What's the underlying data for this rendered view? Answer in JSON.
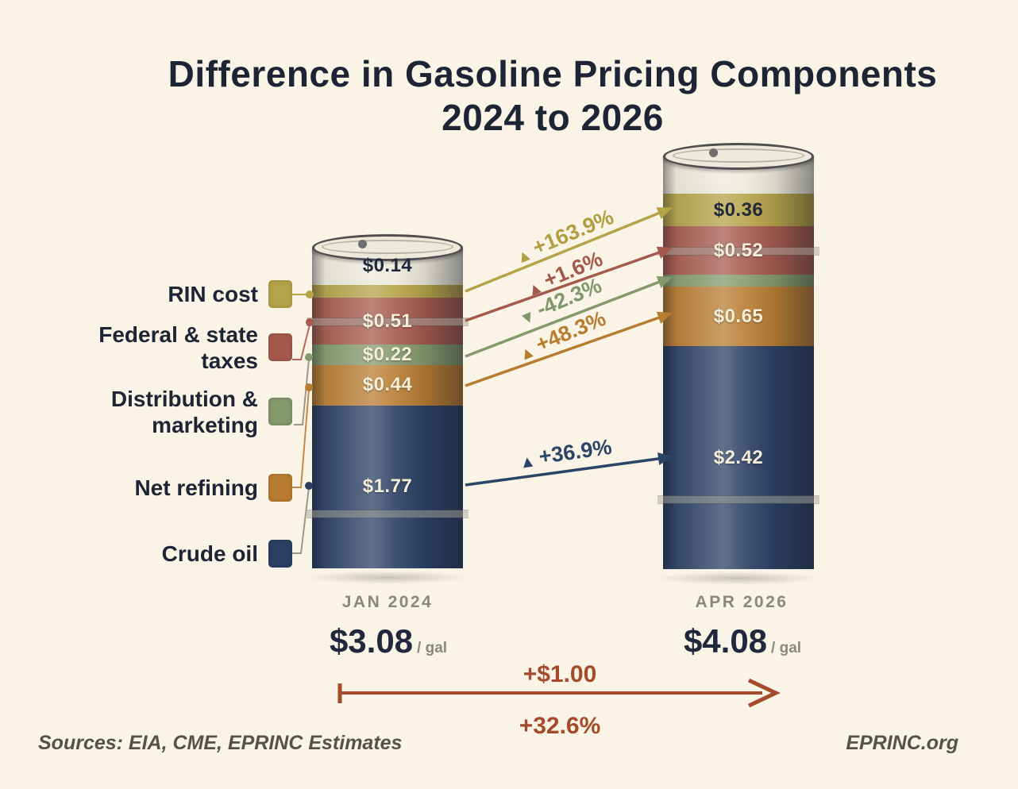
{
  "title": {
    "line1": "Difference in Gasoline Pricing Components",
    "line2": "2024 to 2026"
  },
  "legend": {
    "items": [
      {
        "label": "RIN cost"
      },
      {
        "label": "Federal & state\ntaxes"
      },
      {
        "label": "Distribution &\nmarketing"
      },
      {
        "label": "Net refining"
      },
      {
        "label": "Crude oil"
      }
    ]
  },
  "chart_data": {
    "type": "bar",
    "subtype": "stacked-cylinder-comparison",
    "categories": [
      "JAN 2024",
      "APR 2026"
    ],
    "series": [
      {
        "name": "RIN cost",
        "color": "#b5a348",
        "values": [
          0.14,
          0.36
        ],
        "value_labels": [
          "$0.14",
          "$0.36"
        ],
        "change": "+163.9%",
        "marker": "▲"
      },
      {
        "name": "Federal & state taxes",
        "color": "#a5594d",
        "values": [
          0.51,
          0.52
        ],
        "value_labels": [
          "$0.51",
          "$0.52"
        ],
        "change": "+1.6%",
        "marker": "▲"
      },
      {
        "name": "Distribution & marketing",
        "color": "#84996c",
        "values": [
          0.22,
          0.13
        ],
        "value_labels": [
          "$0.22",
          null
        ],
        "change": "-42.3%",
        "marker": "▼"
      },
      {
        "name": "Net refining",
        "color": "#b87c31",
        "values": [
          0.44,
          0.65
        ],
        "value_labels": [
          "$0.44",
          "$0.65"
        ],
        "change": "+48.3%",
        "marker": "▲"
      },
      {
        "name": "Crude oil",
        "color": "#2a3f63",
        "values": [
          1.77,
          2.42
        ],
        "value_labels": [
          "$1.77",
          "$2.42"
        ],
        "change": "+36.9%",
        "marker": "▲"
      }
    ],
    "totals": [
      {
        "label": "JAN 2024",
        "value": "$3.08",
        "unit": "/ gal"
      },
      {
        "label": "APR 2026",
        "value": "$4.08",
        "unit": "/ gal"
      }
    ],
    "total_change": {
      "amount": "+$1.00",
      "percent": "+32.6%"
    },
    "ylim": [
      0,
      4.08
    ],
    "grid": false,
    "legend_position": "left"
  },
  "footer": {
    "sources": "Sources: EIA, CME, EPRINC Estimates",
    "site": "EPRINC.org"
  },
  "colors": {
    "background": "#faf4e7",
    "title_text": "#1d2434",
    "value_text_light": "#f5efd9",
    "value_text_dark": "#20283c",
    "category_text": "#8a877b",
    "total_change_accent": "#a34b2b",
    "footer_text": "#55524a",
    "barrel_headspace": "#ece9da",
    "lid": "#edeadb"
  }
}
